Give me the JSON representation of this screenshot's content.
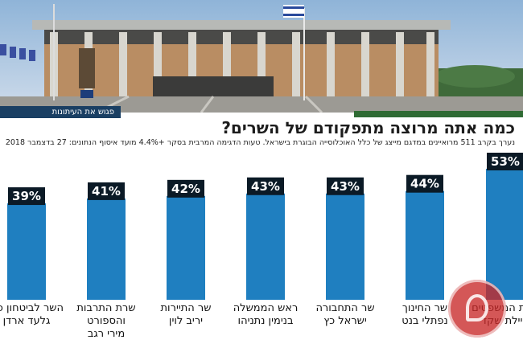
{
  "header": {
    "brand": "פגוש את העיתונות"
  },
  "chart_data": {
    "type": "bar",
    "title": "כמה אתה מרוצה מתפקודם של השרים?",
    "subtitle": "נערך בקרב 511 מרואיינים במדגם מייצג של כלל האוכלוסייה הבוגרת בישראל. טעות הדגימה המרבית בסקר +4.4% מועד איסוף הנתונים: 27 בדצמבר 2018",
    "categories": [
      "השר לביטחון פנים גלעד ארדן",
      "שרת התרבות והספורט מירי רגב",
      "שר התיירות יריב לוין",
      "ראש הממשלה בנימין נתניהו",
      "שר התחבורה ישראל כץ",
      "שר החינוך נפתלי בנט",
      "שרת המשפטים איילת שקד"
    ],
    "label_lines": [
      [
        "השר לביטחון פנים",
        "גלעד ארדן"
      ],
      [
        "שרת התרבות",
        "והספורט",
        "מירי רגב"
      ],
      [
        "שר התיירות",
        "יריב לוין"
      ],
      [
        "ראש הממשלה",
        "בנימין נתניהו"
      ],
      [
        "שר התחבורה",
        "ישראל כץ"
      ],
      [
        "שר החינוך",
        "נפתלי בנט"
      ],
      [
        "שרת המשפטים",
        "איילת שקד"
      ]
    ],
    "values": [
      39,
      41,
      42,
      43,
      43,
      44,
      53
    ],
    "value_labels": [
      "39%",
      "41%",
      "42%",
      "43%",
      "43%",
      "44%",
      "53%"
    ],
    "ylim": [
      0,
      53
    ],
    "colors": {
      "bar": "#1f7fc0",
      "label_bg": "#0b1a26"
    }
  }
}
